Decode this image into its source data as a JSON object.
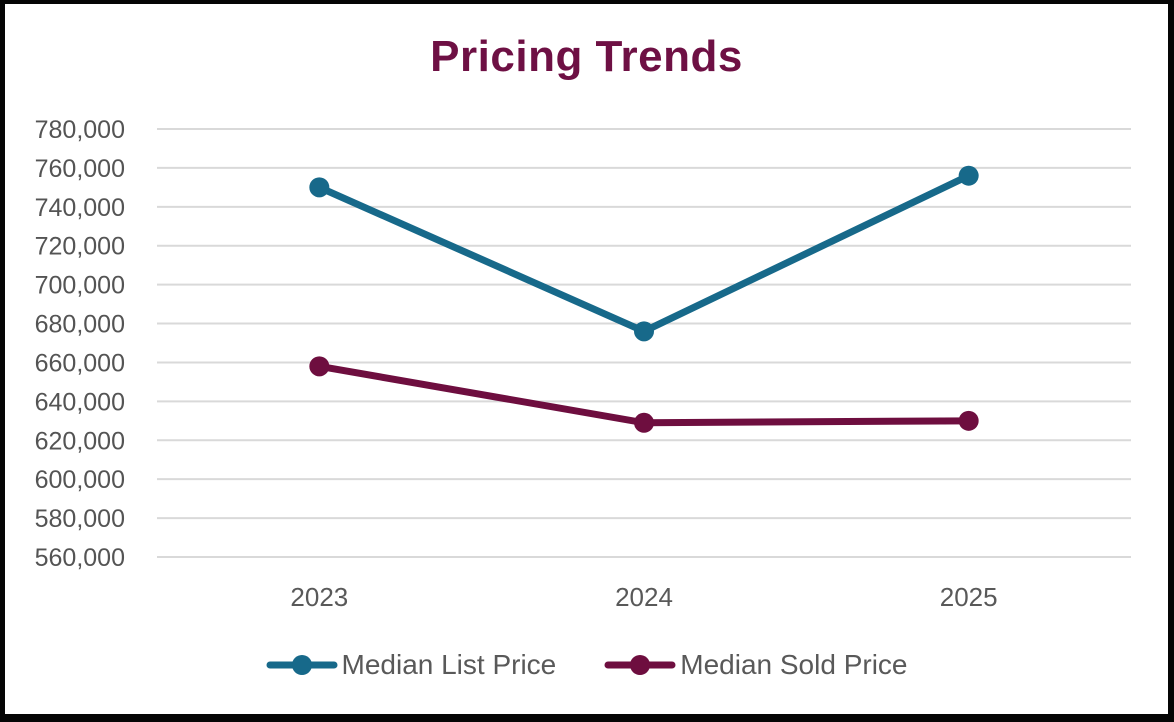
{
  "title": "Pricing Trends",
  "colors": {
    "title": "#6e1044",
    "y_axis_label": "#545454",
    "x_axis_label": "#595959",
    "legend_label": "#595959",
    "gridline": "#d9d9d9",
    "background": "#ffffff",
    "frame": "#050505",
    "list_price_series": "#17698a",
    "sold_price_series": "#6e0e3f"
  },
  "chart_data": {
    "type": "line",
    "title": "Pricing Trends",
    "categories": [
      "2023",
      "2024",
      "2025"
    ],
    "series": [
      {
        "name": "Median List Price",
        "color": "#17698a",
        "values": [
          750000,
          676000,
          756000
        ]
      },
      {
        "name": "Median Sold Price",
        "color": "#6e0e3f",
        "values": [
          658000,
          629000,
          630000
        ]
      }
    ],
    "ylim": [
      560000,
      780000
    ],
    "ytick_step": 20000,
    "yticks": [
      {
        "value": 780000,
        "label": "780,000"
      },
      {
        "value": 760000,
        "label": "760,000"
      },
      {
        "value": 740000,
        "label": "740,000"
      },
      {
        "value": 720000,
        "label": "720,000"
      },
      {
        "value": 700000,
        "label": "700,000"
      },
      {
        "value": 680000,
        "label": "680,000"
      },
      {
        "value": 660000,
        "label": "660,000"
      },
      {
        "value": 640000,
        "label": "640,000"
      },
      {
        "value": 620000,
        "label": "620,000"
      },
      {
        "value": 600000,
        "label": "600,000"
      },
      {
        "value": 580000,
        "label": "580,000"
      },
      {
        "value": 560000,
        "label": "560,000"
      }
    ],
    "grid": true,
    "legend_position": "bottom"
  }
}
